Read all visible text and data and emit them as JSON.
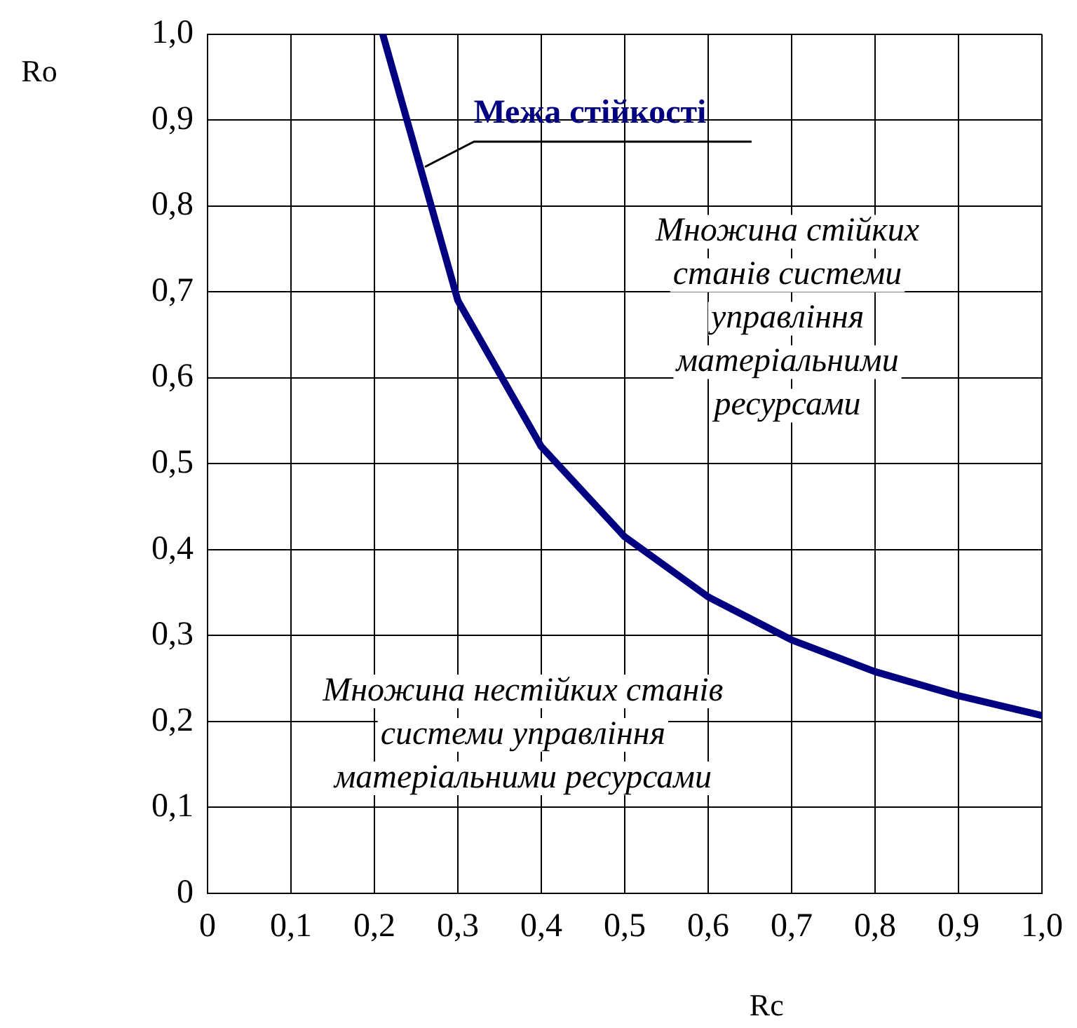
{
  "chart_data": {
    "type": "line",
    "xlabel": "Rc",
    "ylabel": "Ro",
    "x": [
      0.21,
      0.3,
      0.4,
      0.5,
      0.6,
      0.7,
      0.8,
      0.9,
      1.0
    ],
    "series": [
      {
        "name": "Межа стійкості",
        "color": "#000080",
        "values": [
          1.0,
          0.69,
          0.52,
          0.415,
          0.345,
          0.295,
          0.258,
          0.23,
          0.207
        ]
      }
    ],
    "xlim": [
      0,
      1
    ],
    "ylim": [
      0,
      1
    ],
    "xticks": [
      0,
      {
        "value": 0.1,
        "label": "0,1"
      },
      {
        "value": 0.2,
        "label": "0,2"
      },
      {
        "value": 0.3,
        "label": "0,3"
      },
      {
        "value": 0.4,
        "label": "0,4"
      },
      {
        "value": 0.5,
        "label": "0,5"
      },
      {
        "value": 0.6,
        "label": "0,6"
      },
      {
        "value": 0.7,
        "label": "0,7"
      },
      {
        "value": 0.8,
        "label": "0,8"
      },
      {
        "value": 0.9,
        "label": "0,9"
      },
      {
        "value": 1,
        "label": "1,0"
      }
    ],
    "yticks": [
      0,
      {
        "value": 0.1,
        "label": "0,1"
      },
      {
        "value": 0.2,
        "label": "0,2"
      },
      {
        "value": 0.3,
        "label": "0,3"
      },
      {
        "value": 0.4,
        "label": "0,4"
      },
      {
        "value": 0.5,
        "label": "0,5"
      },
      {
        "value": 0.6,
        "label": "0,6"
      },
      {
        "value": 0.7,
        "label": "0,7"
      },
      {
        "value": 0.8,
        "label": "0,8"
      },
      {
        "value": 0.9,
        "label": "0,9"
      },
      {
        "value": 1,
        "label": "1,0"
      }
    ],
    "annotations": [
      "Множина стійких\nстанів системи\nуправління\nматеріальними\nресурсами",
      "Множина нестійких станів\nсистеми управління\nматеріальними ресурсами"
    ],
    "grid": true,
    "legend": false,
    "marker": "none",
    "line_style": "solid"
  }
}
